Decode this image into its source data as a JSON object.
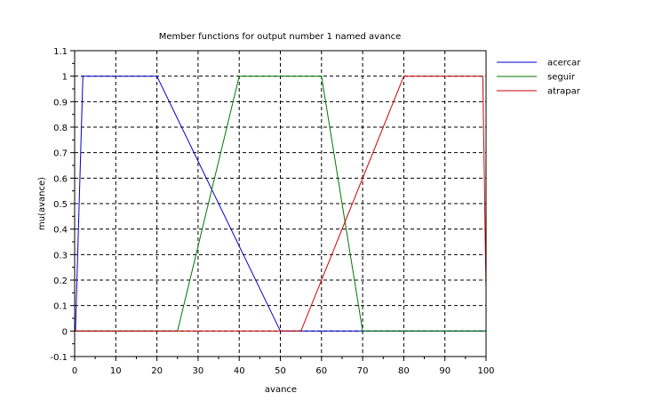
{
  "chart_data": {
    "type": "line",
    "title": "Member functions for output number 1 named avance",
    "xlabel": "avance",
    "ylabel": "mu(avance)",
    "xlim": [
      0,
      100
    ],
    "ylim": [
      -0.1,
      1.1
    ],
    "xticks": [
      "0",
      "10",
      "20",
      "30",
      "40",
      "50",
      "60",
      "70",
      "80",
      "90",
      "100"
    ],
    "yticks": [
      "-0.1",
      "0",
      "0.1",
      "0.2",
      "0.3",
      "0.4",
      "0.5",
      "0.6",
      "0.7",
      "0.8",
      "0.9",
      "1",
      "1.1"
    ],
    "grid": true,
    "legend_position": "right",
    "series": [
      {
        "name": "acercar",
        "color": "#0000cc",
        "x": [
          0,
          0.2,
          2,
          20,
          50,
          100
        ],
        "y": [
          0,
          0,
          1,
          1,
          0,
          0
        ]
      },
      {
        "name": "seguir",
        "color": "#007700",
        "x": [
          0,
          25,
          40,
          60,
          70,
          100
        ],
        "y": [
          0,
          0,
          1,
          1,
          0,
          0
        ]
      },
      {
        "name": "atrapar",
        "color": "#cc0000",
        "x": [
          0,
          55,
          80,
          99.2,
          99.6,
          99.8,
          100
        ],
        "y": [
          0,
          0,
          1,
          1,
          0.6,
          0.35,
          0.17
        ]
      }
    ]
  }
}
